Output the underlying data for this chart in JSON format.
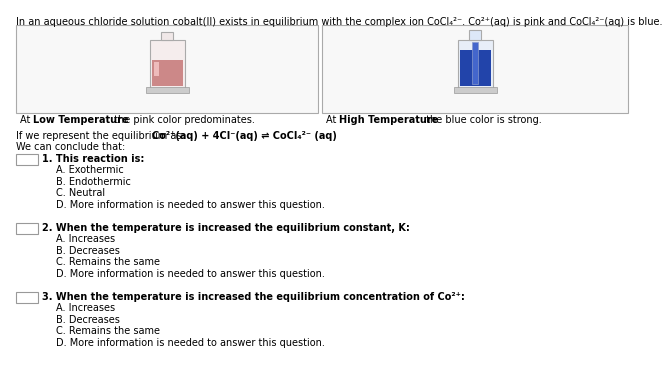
{
  "bg_color": "#ffffff",
  "header_text": "In an aqueous chloride solution cobalt(II) exists in equilibrium with the complex ion CoCl₄²⁻. Co²⁺(aq) is pink and CoCl₄²⁻(aq) is blue.",
  "caption_left_bold": "At Low Temperature",
  "caption_left_rest": " the pink color predominates.",
  "caption_right_bold": "At High Temperature",
  "caption_right_rest": " the blue color is strong.",
  "eq_prefix": "If we represent the equilibrium as:   ",
  "eq_bold": "Co²⁺(aq) + 4Cl⁻(aq) ⇌ CoCl₄²⁻ (aq)",
  "conclude_text": "We can conclude that:",
  "q1_bold": "1. This reaction is:",
  "q1_options": [
    "A. Exothermic",
    "B. Endothermic",
    "C. Neutral",
    "D. More information is needed to answer this question."
  ],
  "q2_bold": "2. When the temperature is increased the equilibrium constant, K:",
  "q2_options": [
    "A. Increases",
    "B. Decreases",
    "C. Remains the same",
    "D. More information is needed to answer this question."
  ],
  "q3_bold": "3. When the temperature is increased the equilibrium concentration of Co²⁺:",
  "q3_options": [
    "A. Increases",
    "B. Decreases",
    "C. Remains the same",
    "D. More information is needed to answer this question."
  ],
  "text_color": "#000000",
  "panel_border": "#aaaaaa",
  "box_border": "#999999",
  "pink_fill": "#d4a0a0",
  "pink_glass": "#f0e0e0",
  "blue_fill": "#2244aa",
  "blue_glass": "#dde8f5"
}
